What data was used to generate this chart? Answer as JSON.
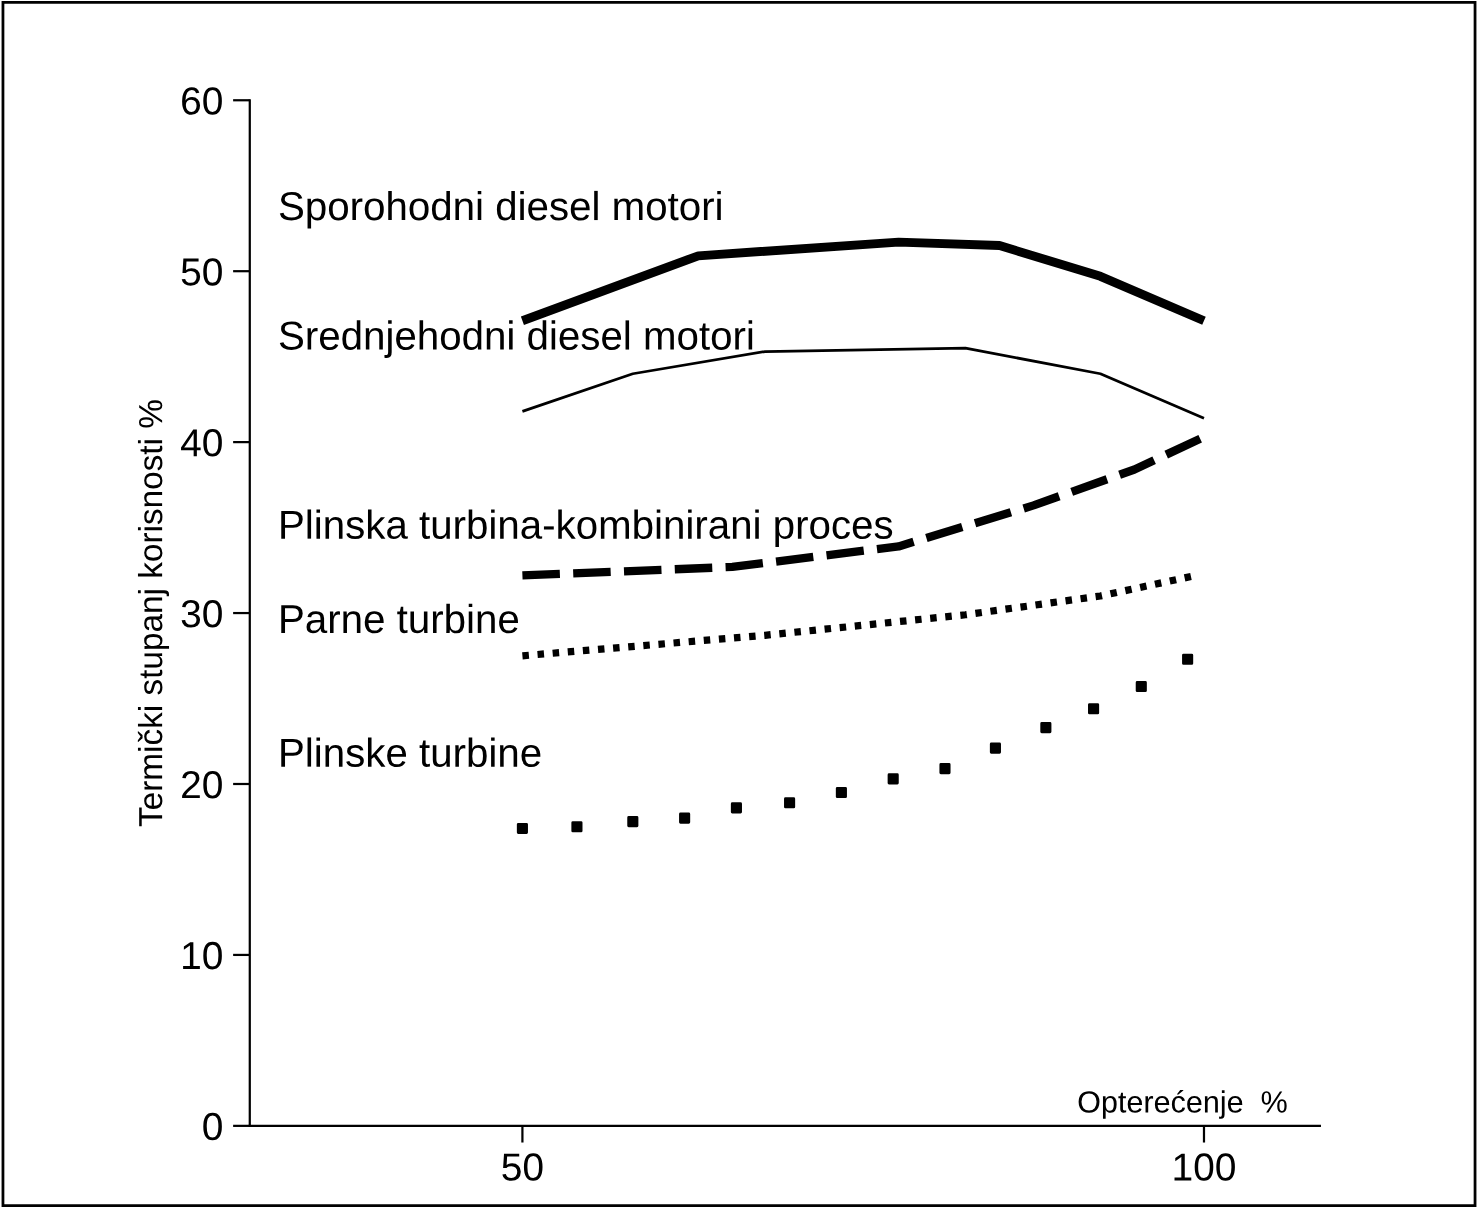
{
  "chart_data": {
    "type": "line",
    "xlabel": "Opterećenje  %",
    "ylabel": "Termički stupanj korisnosti %",
    "xlim": [
      30,
      108.5
    ],
    "ylim": [
      0,
      60
    ],
    "xticks": [
      50,
      100
    ],
    "yticks": [
      0,
      10,
      20,
      30,
      40,
      50,
      60
    ],
    "grid": false,
    "legend": false,
    "series": [
      {
        "name": "Sporohodni diesel motori",
        "color": "#000000",
        "line_style": "solid",
        "x": [
          50,
          62.9,
          77.6,
          85,
          92.4,
          100
        ],
        "values": [
          47.1,
          50.9,
          51.7,
          51.5,
          49.7,
          47.1
        ]
      },
      {
        "name": "Srednjehodni diesel motori",
        "color": "#000000",
        "line_style": "solid",
        "x": [
          50,
          58.1,
          67.8,
          82.5,
          92.4,
          100
        ],
        "values": [
          41.8,
          44,
          45.3,
          45.5,
          44,
          41.4
        ]
      },
      {
        "name": "Plinska turbina-kombinirani proces",
        "color": "#000000",
        "line_style": "dashed",
        "x": [
          50,
          65.4,
          77.6,
          87.5,
          94.9,
          100
        ],
        "values": [
          32.2,
          32.7,
          33.9,
          36.3,
          38.4,
          40.3
        ]
      },
      {
        "name": "Parne turbine",
        "color": "#000000",
        "line_style": "dotted",
        "x": [
          50,
          67.8,
          82.5,
          92.4,
          99.4
        ],
        "values": [
          27.5,
          28.7,
          29.9,
          31,
          32.2
        ]
      },
      {
        "name": "Plinske turbine",
        "color": "#000000",
        "type": "scatter",
        "marker": "square",
        "x": [
          50,
          54,
          58.1,
          61.9,
          65.7,
          69.6,
          73.4,
          77.2,
          81,
          84.7,
          88.4,
          91.9,
          95.4,
          98.8
        ],
        "values": [
          17.4,
          17.5,
          17.8,
          18.0,
          18.6,
          18.9,
          19.5,
          20.3,
          20.9,
          22.1,
          23.3,
          24.4,
          25.7,
          27.3
        ]
      }
    ]
  }
}
